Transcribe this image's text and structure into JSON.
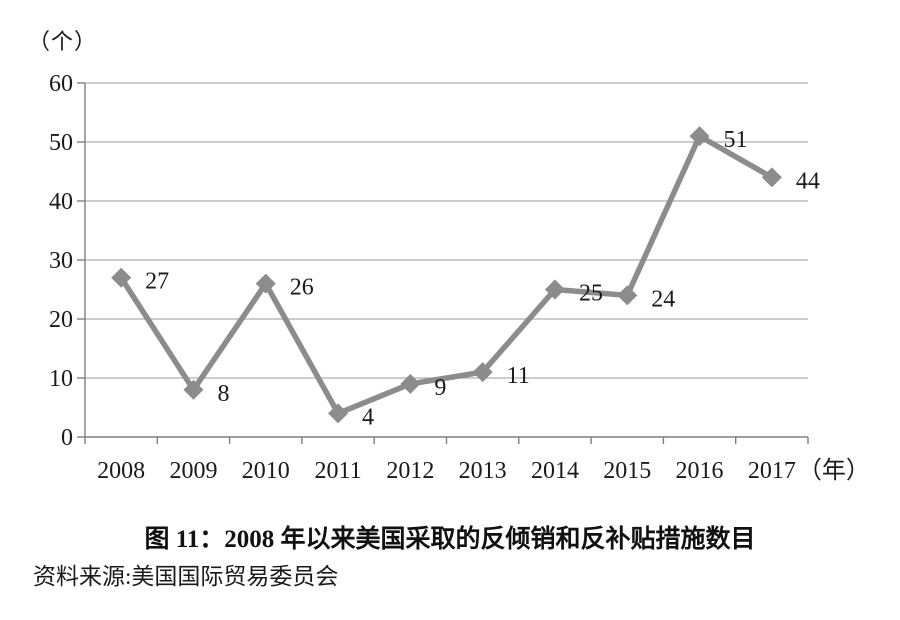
{
  "source": "资料来源:美国国际贸易委员会",
  "chart_data": {
    "type": "line",
    "title": "图 11：2008 年以来美国采取的反倾销和反补贴措施数目",
    "categories": [
      "2008",
      "2009",
      "2010",
      "2011",
      "2012",
      "2013",
      "2014",
      "2015",
      "2016",
      "2017"
    ],
    "values": [
      27,
      8,
      26,
      4,
      9,
      11,
      25,
      24,
      51,
      44
    ],
    "y_ticks": [
      0,
      10,
      20,
      30,
      40,
      50,
      60
    ],
    "ylim": [
      0,
      60
    ],
    "y_unit_label": "（个）",
    "x_unit_label": "（年）",
    "grid": true,
    "legend": false,
    "marker": "diamond",
    "data_labels": true,
    "colors": {
      "line": "#8c8c8c",
      "marker": "#8c8c8c",
      "grid": "#adadad",
      "axis": "#7f7f7f",
      "text": "#1a1a1a"
    }
  }
}
